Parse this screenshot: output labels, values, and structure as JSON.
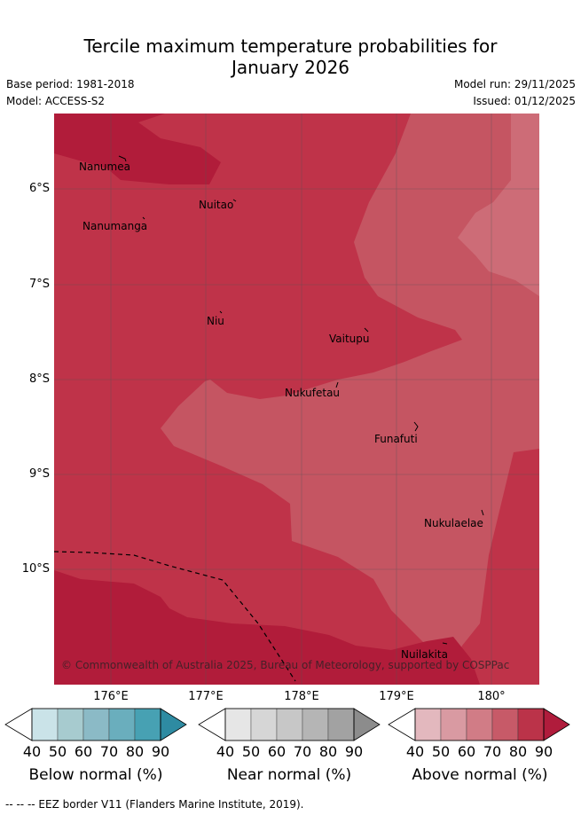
{
  "header": {
    "title_line1": "Tercile maximum temperature probabilities for",
    "title_line2": "January 2026",
    "base_period": "Base period: 1981-2018",
    "model": "Model: ACCESS-S2",
    "model_run": "Model run: 29/11/2025",
    "issued": "Issued: 01/12/2025"
  },
  "map": {
    "lat_labels": [
      "6°S",
      "7°S",
      "8°S",
      "9°S",
      "10°S"
    ],
    "lon_labels": [
      "176°E",
      "177°E",
      "178°E",
      "179°E",
      "180°"
    ],
    "places": [
      {
        "name": "Nanumea"
      },
      {
        "name": "Nuitao"
      },
      {
        "name": "Nanumanga"
      },
      {
        "name": "Niu"
      },
      {
        "name": "Vaitupu"
      },
      {
        "name": "Nukufetau"
      },
      {
        "name": "Funafuti"
      },
      {
        "name": "Nukulaelae"
      },
      {
        "name": "Nuilakita"
      }
    ],
    "copyright": "© Commonwealth of Australia 2025, Bureau of Meteorology, supported by COSPPac",
    "colors": {
      "above_60": "#d4717f",
      "above_70": "#c65866",
      "above_80": "#bf3349",
      "above_90": "#b01c3c"
    }
  },
  "colorbars": [
    {
      "caption": "Below normal (%)",
      "ticks": [
        "40",
        "50",
        "60",
        "70",
        "80",
        "90"
      ],
      "colors": [
        "#cae3e8",
        "#a7cbcf",
        "#8bbac6",
        "#6aaebd",
        "#47a1b3",
        "#2e8ba2"
      ]
    },
    {
      "caption": "Near normal (%)",
      "ticks": [
        "40",
        "50",
        "60",
        "70",
        "80",
        "90"
      ],
      "colors": [
        "#e6e6e6",
        "#d6d6d6",
        "#c7c7c7",
        "#b5b5b5",
        "#a2a2a2",
        "#8c8c8c"
      ]
    },
    {
      "caption": "Above normal (%)",
      "ticks": [
        "40",
        "50",
        "60",
        "70",
        "80",
        "90"
      ],
      "colors": [
        "#e3b8be",
        "#d99aa2",
        "#d17c86",
        "#c75a68",
        "#bb3349",
        "#b01c3c"
      ]
    }
  ],
  "footer": {
    "legend_line": "--  --  -- EEZ border V11 (Flanders Marine Institute, 2019)."
  }
}
